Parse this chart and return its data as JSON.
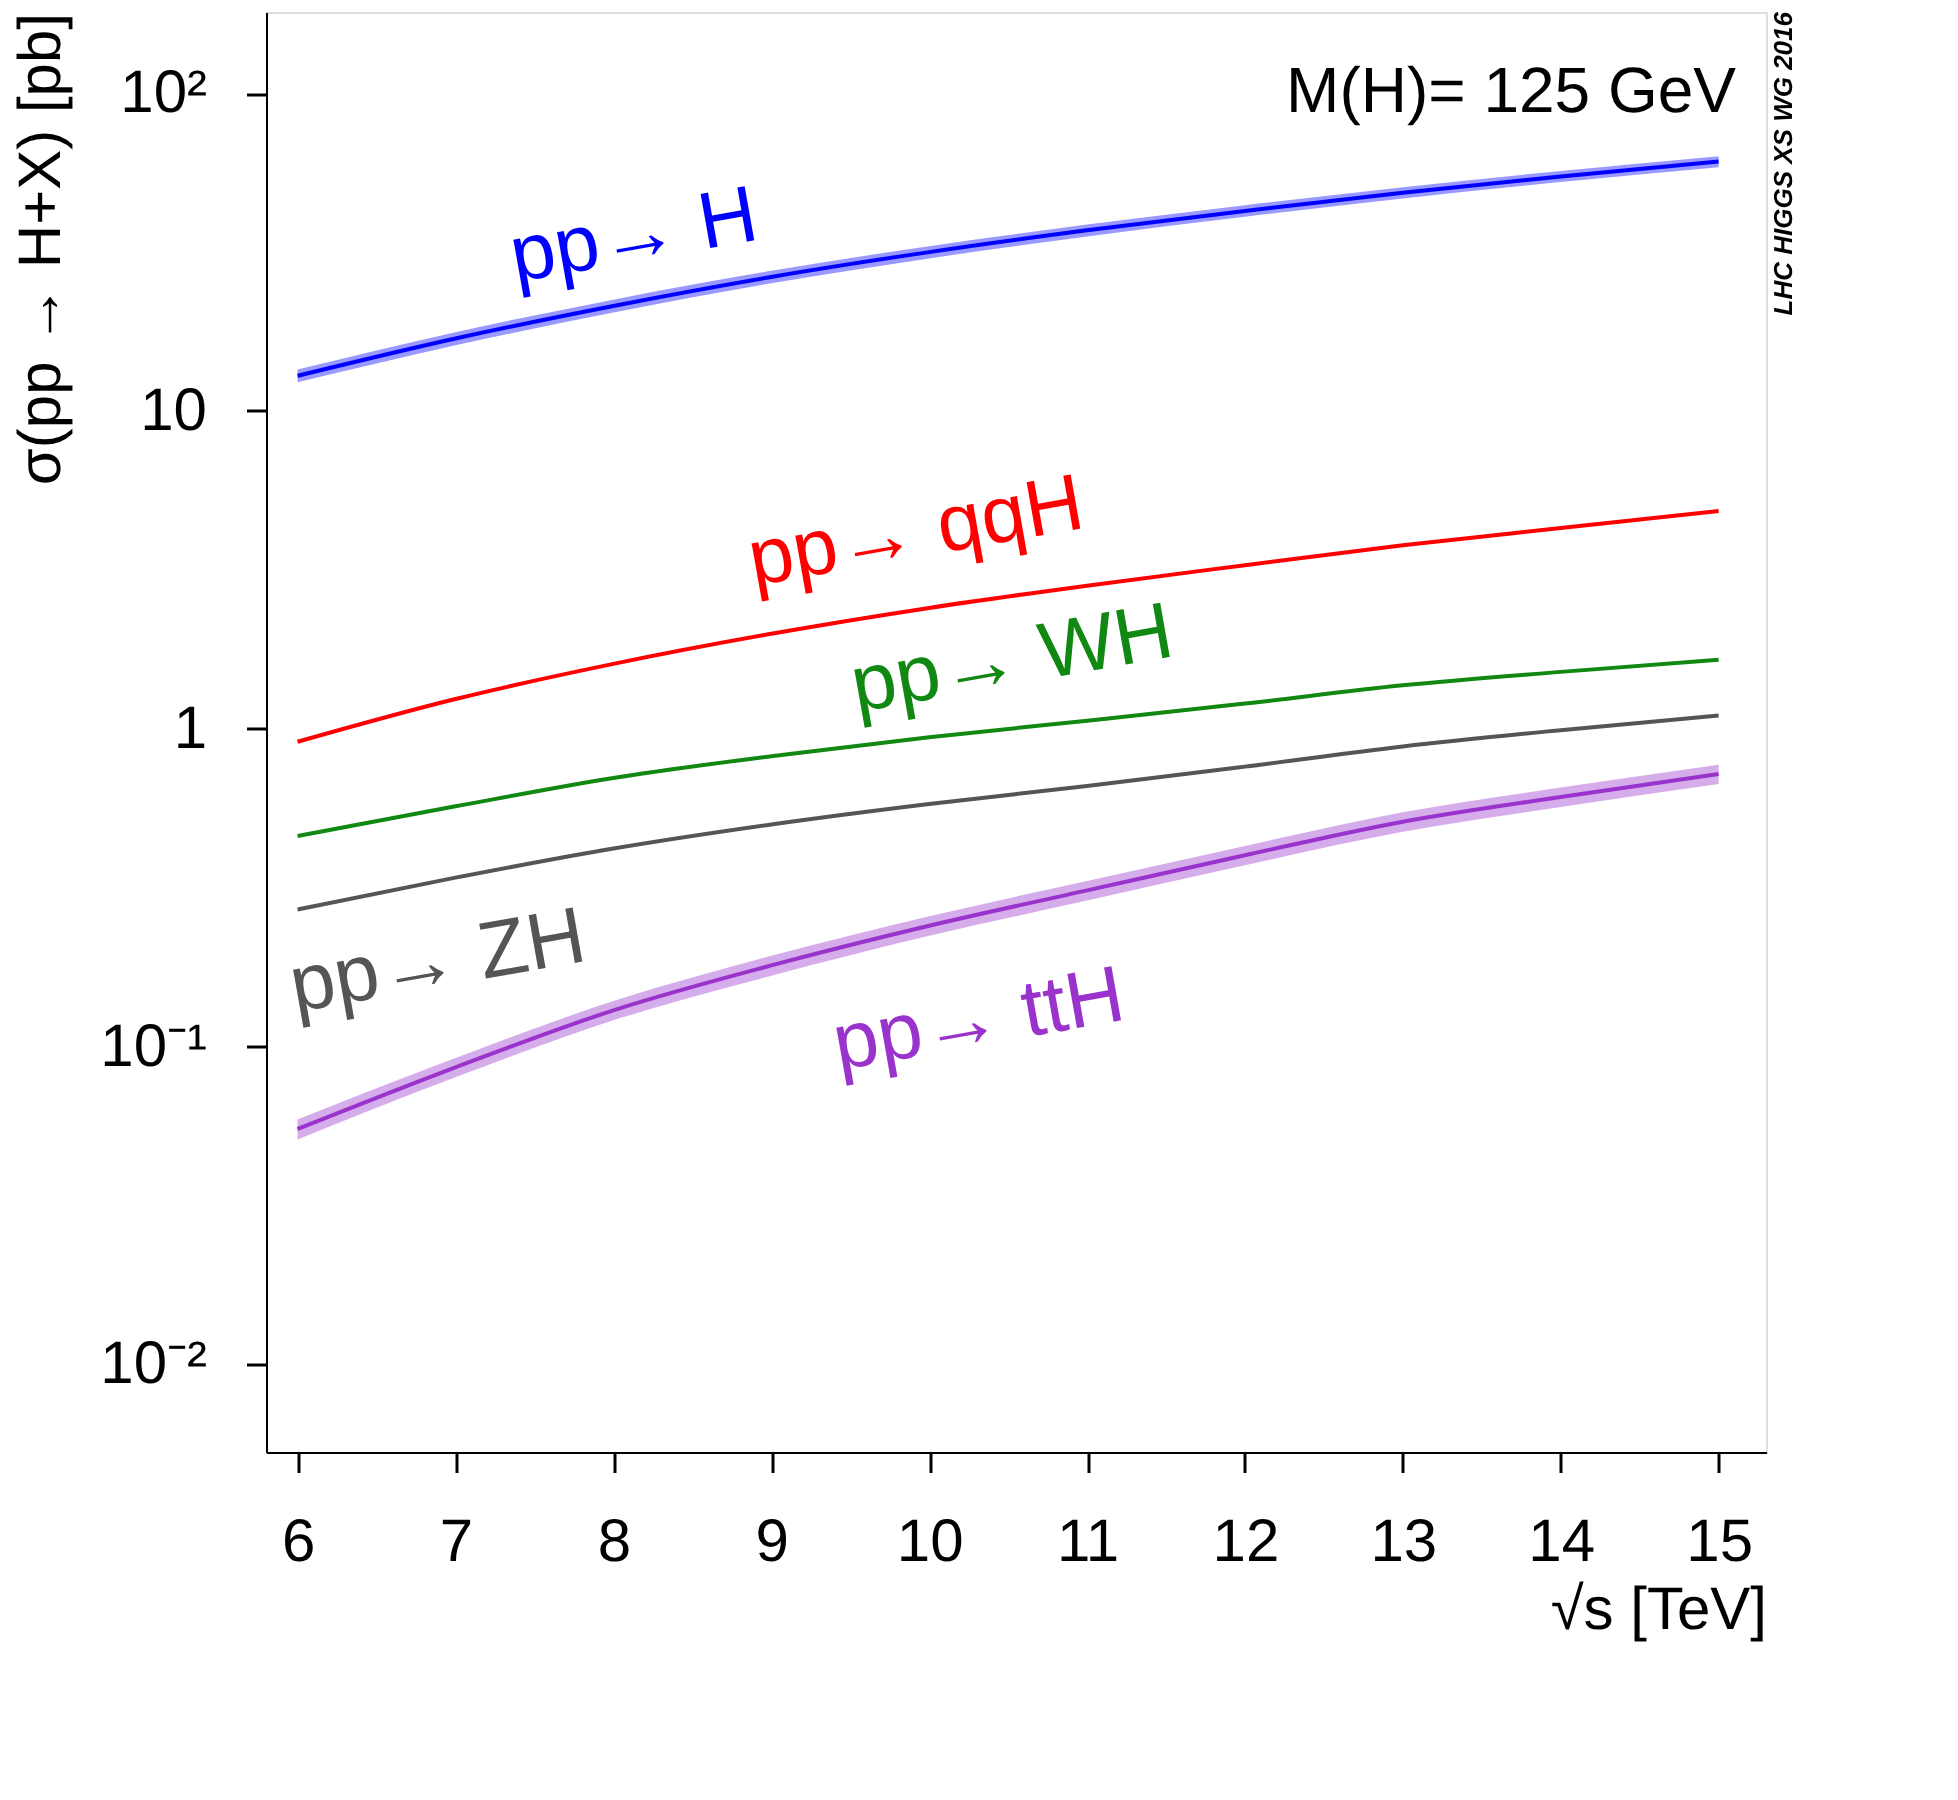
{
  "chart_data": {
    "type": "line",
    "xlabel": "√s [TeV]",
    "ylabel": "σ(pp → H+X) [pb]",
    "annotations": [
      "M(H)= 125 GeV",
      "LHC HIGGS XS WG 2016"
    ],
    "x": [
      6,
      7,
      8,
      9,
      10,
      11,
      12,
      13,
      14,
      15
    ],
    "series": [
      {
        "name": "pp→ H",
        "color": "#0000ff",
        "values": [
          12.9,
          16.9,
          21.4,
          26.4,
          31.6,
          37.0,
          42.6,
          48.6,
          54.7,
          60.9
        ],
        "lower": [
          12.3,
          16.1,
          20.4,
          25.2,
          30.2,
          35.4,
          40.8,
          46.6,
          52.5,
          58.5
        ],
        "upper": [
          13.5,
          17.7,
          22.4,
          27.6,
          33.0,
          38.6,
          44.4,
          50.6,
          56.9,
          63.3
        ]
      },
      {
        "name": "pp→ qqH",
        "color": "#ff0000",
        "values": [
          0.91,
          1.24,
          1.6,
          1.99,
          2.4,
          2.82,
          3.27,
          3.78,
          4.28,
          4.84
        ]
      },
      {
        "name": "pp→ WH",
        "color": "#118811",
        "values": [
          0.46,
          0.57,
          0.7,
          0.82,
          0.94,
          1.06,
          1.2,
          1.37,
          1.51,
          1.65
        ]
      },
      {
        "name": "pp→ ZH",
        "color": "#555555",
        "values": [
          0.27,
          0.34,
          0.42,
          0.5,
          0.58,
          0.66,
          0.76,
          0.88,
          0.99,
          1.1
        ]
      },
      {
        "name": "pp→ ttH",
        "color": "#9933cc",
        "values": [
          0.055,
          0.086,
          0.13,
          0.18,
          0.24,
          0.31,
          0.4,
          0.51,
          0.61,
          0.72
        ],
        "lower": [
          0.051,
          0.08,
          0.121,
          0.167,
          0.223,
          0.288,
          0.372,
          0.474,
          0.567,
          0.67
        ],
        "upper": [
          0.059,
          0.092,
          0.139,
          0.193,
          0.257,
          0.332,
          0.428,
          0.546,
          0.653,
          0.77
        ]
      }
    ],
    "xlim": [
      5.8,
      15.3
    ],
    "xticks": [
      6,
      7,
      8,
      9,
      10,
      11,
      12,
      13,
      14,
      15
    ],
    "ylim": [
      0.0053,
      180
    ],
    "yticks": [
      {
        "value": 0.01,
        "label": "10⁻²"
      },
      {
        "value": 0.1,
        "label": "10⁻¹"
      },
      1,
      10,
      {
        "value": 100,
        "label": "10²"
      }
    ],
    "log": true,
    "grid": false,
    "marker": "none",
    "line_style": "solid"
  }
}
